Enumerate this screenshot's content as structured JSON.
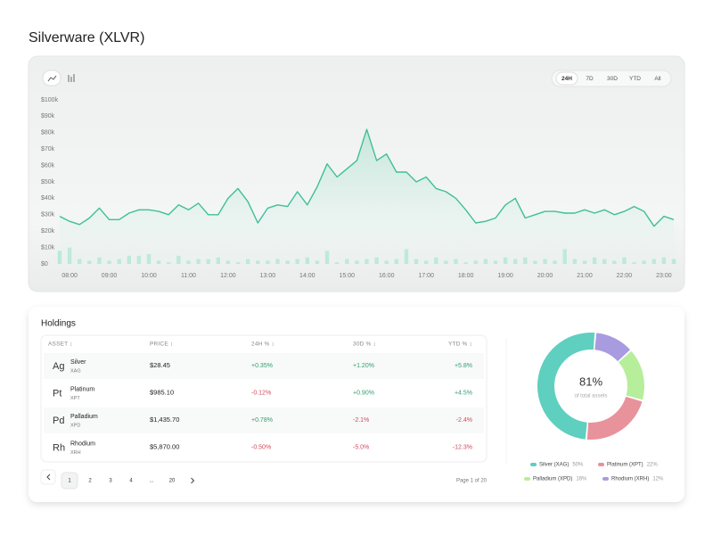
{
  "title": "Silverware (XLVR)",
  "chart_data": [
    {
      "type": "line",
      "ranges": [
        "24H",
        "7D",
        "30D",
        "YTD",
        "All"
      ],
      "x": [
        7.75,
        8,
        8.25,
        8.5,
        8.75,
        9,
        9.25,
        9.5,
        9.75,
        10,
        10.25,
        10.5,
        10.75,
        11,
        11.25,
        11.5,
        11.75,
        12,
        12.25,
        12.5,
        12.75,
        13,
        13.25,
        13.5,
        13.75,
        14,
        14.25,
        14.5,
        14.75,
        15,
        15.25,
        15.5,
        15.75,
        16,
        16.25,
        16.5,
        16.75,
        17,
        17.25,
        17.5,
        17.75,
        18,
        18.25,
        18.5,
        18.75,
        19,
        19.25,
        19.5,
        19.75,
        20,
        20.25,
        20.5,
        20.75,
        21,
        21.25,
        21.5,
        21.75,
        22,
        22.25,
        22.5,
        22.75,
        23,
        23.25
      ],
      "values": [
        29000,
        26000,
        24000,
        28000,
        34000,
        27000,
        27000,
        31000,
        33000,
        33000,
        32000,
        30000,
        36000,
        33000,
        37000,
        30000,
        30000,
        40000,
        46000,
        38000,
        25000,
        34000,
        36000,
        35000,
        44000,
        36000,
        47000,
        61000,
        53000,
        58000,
        63000,
        82000,
        63000,
        67000,
        56000,
        56000,
        50000,
        53000,
        46000,
        44000,
        40000,
        33000,
        25000,
        26000,
        28000,
        36000,
        40000,
        28000,
        30000,
        32000,
        32000,
        31000,
        31000,
        33000,
        31000,
        33000,
        30000,
        32000,
        35000,
        32000,
        23000,
        29000,
        27000
      ],
      "bar_values": [
        8000,
        10000,
        3000,
        2000,
        4000,
        2000,
        3000,
        5000,
        5000,
        6000,
        2000,
        1000,
        5000,
        2000,
        3000,
        3000,
        4000,
        2000,
        1000,
        3000,
        2000,
        2000,
        3000,
        2000,
        3000,
        4000,
        2000,
        8000,
        1000,
        3000,
        2000,
        3000,
        4000,
        2000,
        3000,
        9000,
        3000,
        2000,
        4000,
        2000,
        3000,
        1000,
        2000,
        3000,
        2000,
        4000,
        3000,
        4000,
        2000,
        3000,
        2000,
        9000,
        3000,
        2000,
        4000,
        3000,
        2000,
        4000,
        1000,
        2000,
        3000,
        4000,
        3000
      ],
      "color": "#3fbf98",
      "bar_color": "#b8e8d9",
      "xlim": [
        7.75,
        23.25
      ],
      "xticks": [
        {
          "value": 8,
          "label": "08:00"
        },
        {
          "value": 9,
          "label": "09:00"
        },
        {
          "value": 10,
          "label": "10:00"
        },
        {
          "value": 11,
          "label": "11:00"
        },
        {
          "value": 12,
          "label": "12:00"
        },
        {
          "value": 13,
          "label": "13:00"
        },
        {
          "value": 14,
          "label": "14:00"
        },
        {
          "value": 15,
          "label": "15:00"
        },
        {
          "value": 16,
          "label": "16:00"
        },
        {
          "value": 17,
          "label": "17:00"
        },
        {
          "value": 18,
          "label": "18:00"
        },
        {
          "value": 19,
          "label": "19:00"
        },
        {
          "value": 20,
          "label": "20:00"
        },
        {
          "value": 21,
          "label": "21:00"
        },
        {
          "value": 22,
          "label": "22:00"
        },
        {
          "value": 23,
          "label": "23:00"
        }
      ],
      "ylim": [
        0,
        100000
      ],
      "yticks": [
        {
          "value": 0,
          "label": "$0"
        },
        {
          "value": 10000,
          "label": "$10k"
        },
        {
          "value": 20000,
          "label": "$20k"
        },
        {
          "value": 30000,
          "label": "$30k"
        },
        {
          "value": 40000,
          "label": "$40k"
        },
        {
          "value": 50000,
          "label": "$50k"
        },
        {
          "value": 60000,
          "label": "$60k"
        },
        {
          "value": 70000,
          "label": "$70k"
        },
        {
          "value": 80000,
          "label": "$80k"
        },
        {
          "value": 90000,
          "label": "$90k"
        },
        {
          "value": 100000,
          "label": "$100k"
        }
      ],
      "grid": false
    },
    {
      "type": "pie",
      "center_label": "81%",
      "center_sublabel": "of total assets",
      "categories": [
        "Silver (XAG)",
        "Platinum (XPT)",
        "Palladium (XPD)",
        "Rhodium (XRH)"
      ],
      "values": [
        50,
        22,
        16,
        12
      ],
      "value_labels": [
        "50%",
        "22%",
        "16%",
        "12%"
      ],
      "colors": [
        "#5fcfbf",
        "#e8929c",
        "#b6ee9c",
        "#a99be0"
      ]
    }
  ],
  "holdings": {
    "title": "Holdings",
    "columns": [
      "ASSET ↕",
      "PRICE ↕",
      "24H % ↕",
      "30D % ↕",
      "YTD % ↕"
    ],
    "rows": [
      [
        "Ag",
        "Silver",
        "XAG",
        "$28.45",
        "+0.35%",
        "+1.20%",
        "+5.8%"
      ],
      [
        "Pt",
        "Platinum",
        "XPT",
        "$985.10",
        "-0.12%",
        "+0.90%",
        "+4.5%"
      ],
      [
        "Pd",
        "Palladium",
        "XPD",
        "$1,435.70",
        "+0.78%",
        "-2.1%",
        "-2.4%"
      ],
      [
        "Rh",
        "Rhodium",
        "XRH",
        "$5,870.00",
        "-0.50%",
        "-5.0%",
        "-12.3%"
      ]
    ],
    "pages": [
      "1",
      "2",
      "3",
      "4",
      "...",
      "20"
    ],
    "page_info": "Page 1 of 20"
  }
}
